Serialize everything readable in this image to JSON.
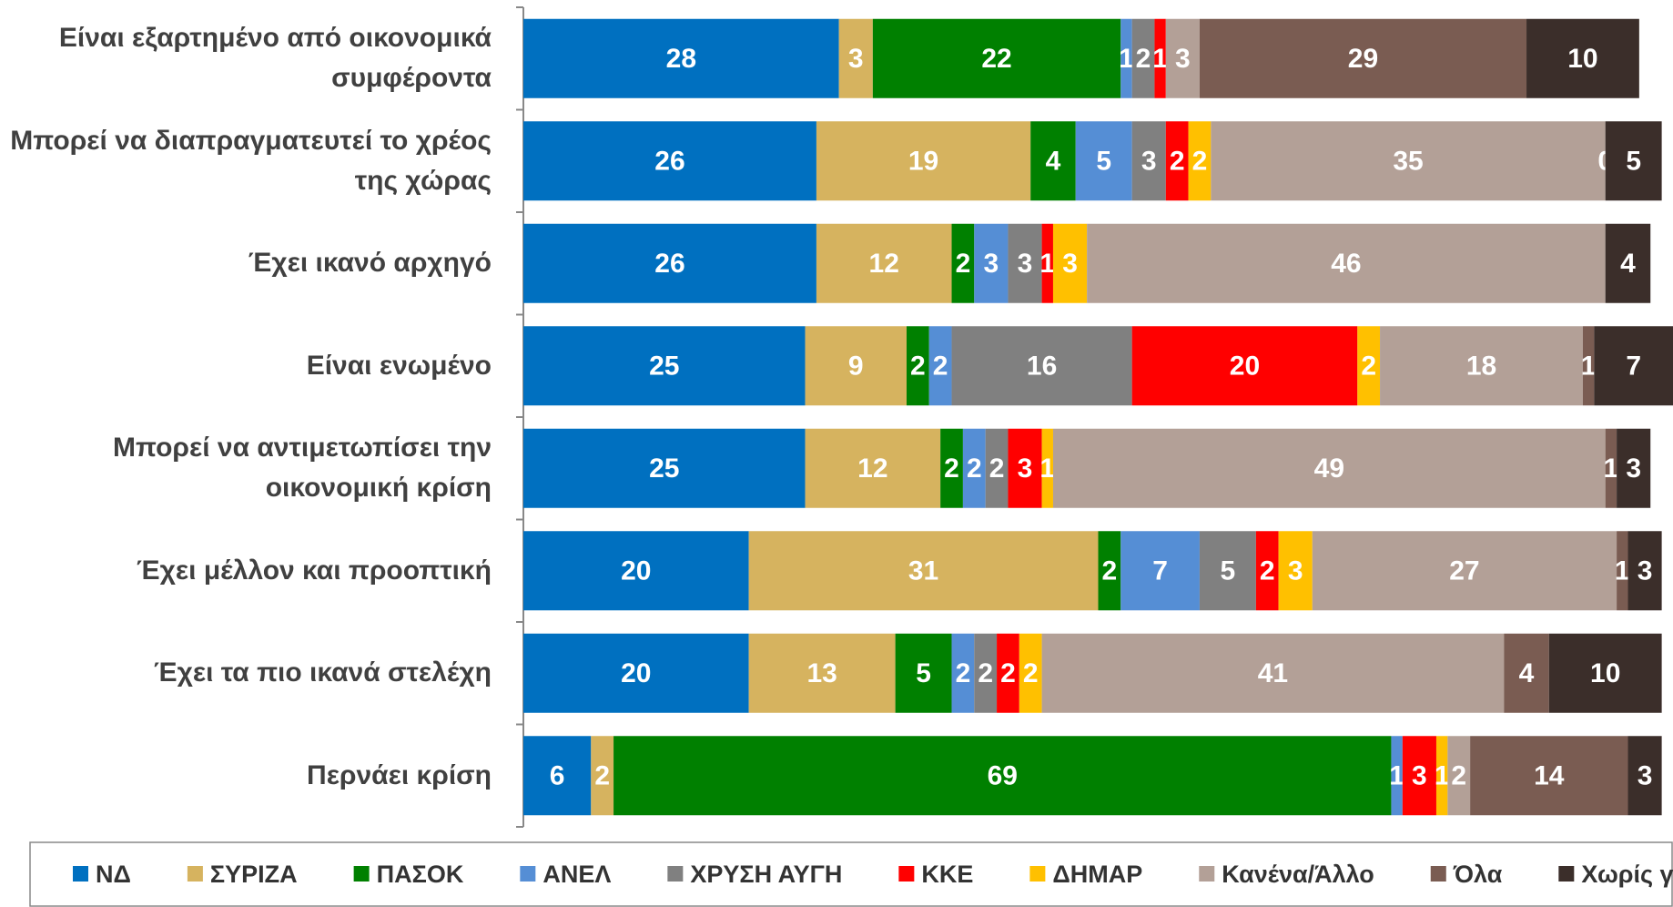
{
  "chart_data": {
    "type": "stacked-barh",
    "categories": [
      "Είναι εξαρτημένο από οικονομικά συμφέροντα",
      "Μπορεί να διαπραγματευτεί το χρέος της χώρας",
      "Έχει ικανό αρχηγό",
      "Είναι ενωμένο",
      "Μπορεί να αντιμετωπίσει την οικονομική κρίση",
      "Έχει μέλλον και προοπτική",
      "Έχει τα πιο ικανά στελέχη",
      "Περνάει κρίση"
    ],
    "series": [
      {
        "name": "ΝΔ",
        "color": "#0070C0",
        "values": [
          28,
          26,
          26,
          25,
          25,
          20,
          20,
          6
        ]
      },
      {
        "name": "ΣΥΡΙΖΑ",
        "color": "#D6B35F",
        "values": [
          3,
          19,
          12,
          9,
          12,
          31,
          13,
          2
        ]
      },
      {
        "name": "ΠΑΣΟΚ",
        "color": "#008000",
        "values": [
          22,
          4,
          2,
          2,
          2,
          2,
          5,
          69
        ]
      },
      {
        "name": "ΑΝΕΛ",
        "color": "#558ED5",
        "values": [
          1,
          5,
          3,
          2,
          2,
          7,
          2,
          1
        ]
      },
      {
        "name": "ΧΡΥΣΗ ΑΥΓΗ",
        "color": "#808080",
        "values": [
          2,
          3,
          3,
          16,
          2,
          5,
          2,
          null
        ]
      },
      {
        "name": "ΚΚΕ",
        "color": "#FF0000",
        "values": [
          1,
          2,
          1,
          20,
          3,
          2,
          2,
          3
        ]
      },
      {
        "name": "ΔΗΜΑΡ",
        "color": "#FFC000",
        "values": [
          null,
          2,
          3,
          2,
          1,
          3,
          2,
          1
        ]
      },
      {
        "name": "Κανένα/Άλλο",
        "color": "#B3A097",
        "values": [
          3,
          35,
          46,
          18,
          49,
          27,
          41,
          2
        ]
      },
      {
        "name": "Όλα",
        "color": "#7A5C52",
        "values": [
          29,
          0,
          null,
          1,
          1,
          1,
          4,
          14
        ]
      },
      {
        "name": "Χωρίς γνώμη",
        "color": "#3B2E2A",
        "values": [
          10,
          5,
          4,
          7,
          3,
          3,
          10,
          3
        ]
      }
    ],
    "xlim": [
      0,
      102
    ],
    "legend": "bottom"
  }
}
